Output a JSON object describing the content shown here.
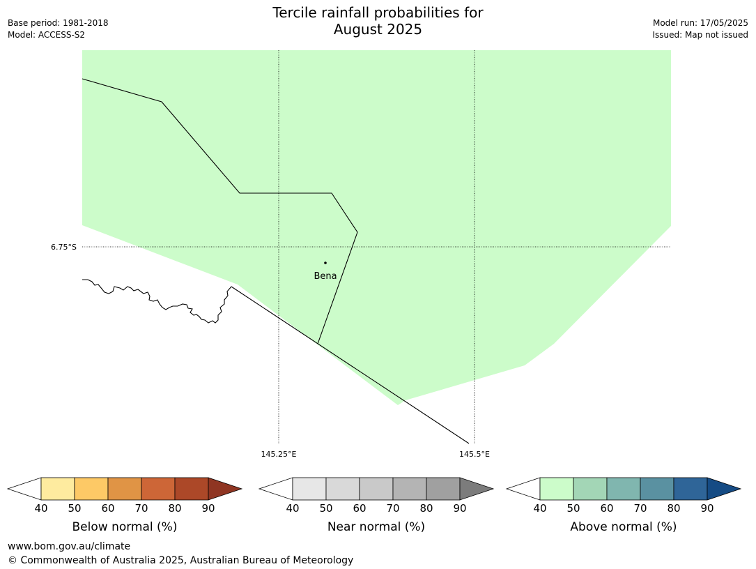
{
  "header": {
    "base_period": "Base period: 1981-2018",
    "model": "Model: ACCESS-S2",
    "title_line1": "Tercile rainfall probabilities for",
    "title_line2": "August 2025",
    "model_run": "Model run: 17/05/2025",
    "issued": "Issued: Map not issued"
  },
  "map": {
    "lat_label": "6.75°S",
    "lon_labels": [
      "145.25°E",
      "145.5°E"
    ],
    "place": "Bena",
    "fill_color": "#ccfcca"
  },
  "colorbars": [
    {
      "label": "Below normal (%)",
      "ticks": [
        "40",
        "50",
        "60",
        "70",
        "80",
        "90"
      ],
      "colors": [
        "#ffffff",
        "#feeb9f",
        "#fdc966",
        "#e09445",
        "#cd6637",
        "#ac4828",
        "#8f3522"
      ]
    },
    {
      "label": "Near normal (%)",
      "ticks": [
        "40",
        "50",
        "60",
        "70",
        "80",
        "90"
      ],
      "colors": [
        "#ffffff",
        "#e7e7e7",
        "#d9d9d9",
        "#c9c9c9",
        "#b4b4b4",
        "#a0a0a0",
        "#7c7c7c"
      ]
    },
    {
      "label": "Above normal (%)",
      "ticks": [
        "40",
        "50",
        "60",
        "70",
        "80",
        "90"
      ],
      "colors": [
        "#ffffff",
        "#ccfcca",
        "#a3d6b6",
        "#80b6af",
        "#5a91a1",
        "#2f6598",
        "#154b84"
      ]
    }
  ],
  "footer": {
    "url": "www.bom.gov.au/climate",
    "copyright": "© Commonwealth of Australia 2025, Australian Bureau of Meteorology"
  }
}
